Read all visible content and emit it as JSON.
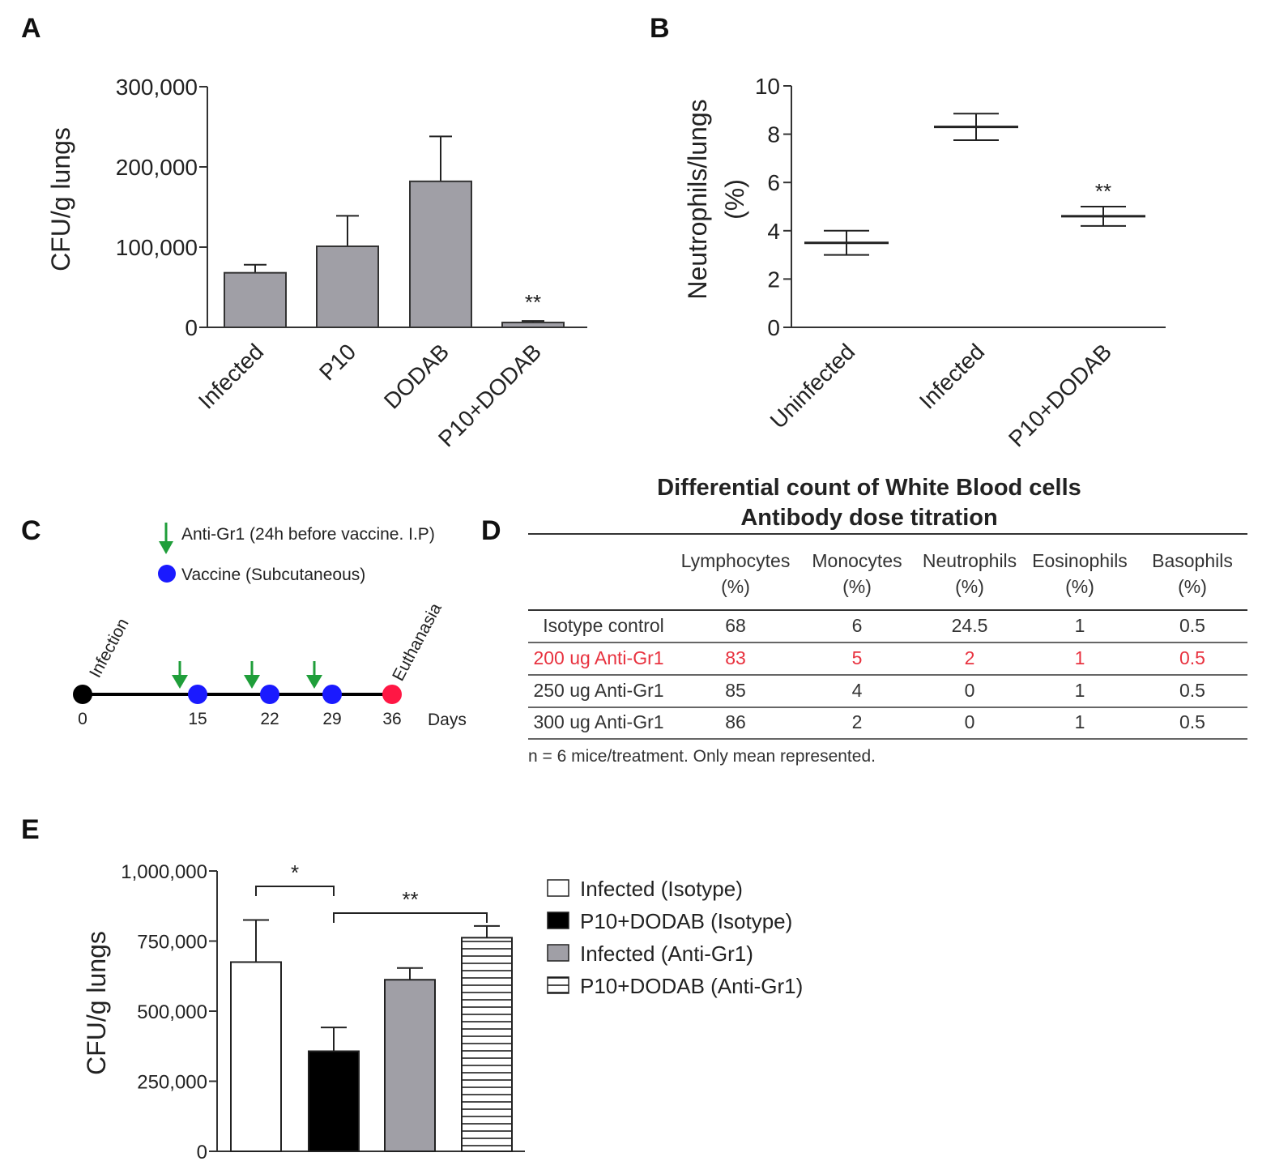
{
  "panels": {
    "A": "A",
    "B": "B",
    "C": "C",
    "D": "D",
    "E": "E"
  },
  "colors": {
    "gray_bar": "#a09fa6",
    "black": "#000000",
    "green_arrow": "#1f9e3a",
    "vaccine_blue": "#1a1aff",
    "euthanasia_red": "#ff1744",
    "table_red": "#e8323f"
  },
  "chart_data": [
    {
      "id": "A",
      "type": "bar",
      "ylabel": "CFU/g lungs",
      "ylim": [
        0,
        300000
      ],
      "yticks": [
        0,
        100000,
        200000,
        300000
      ],
      "ytick_labels": [
        "0",
        "100,000",
        "200,000",
        "300,000"
      ],
      "categories": [
        "Infected",
        "P10",
        "DODAB",
        "P10+DODAB"
      ],
      "values": [
        68000,
        101000,
        182000,
        6000
      ],
      "errors": [
        10000,
        38000,
        56000,
        2000
      ],
      "annotations": [
        {
          "category": "P10+DODAB",
          "text": "**"
        }
      ]
    },
    {
      "id": "B",
      "type": "scatter",
      "ylabel": "Neutrophils/lungs (%)",
      "ylim": [
        0,
        10
      ],
      "yticks": [
        0,
        2,
        4,
        6,
        8,
        10
      ],
      "ytick_labels": [
        "0",
        "2",
        "4",
        "6",
        "8",
        "10"
      ],
      "categories": [
        "Uninfected",
        "Infected",
        "P10+DODAB"
      ],
      "values": [
        3.5,
        8.3,
        4.6
      ],
      "errors": [
        0.5,
        0.55,
        0.4
      ],
      "annotations": [
        {
          "category": "P10+DODAB",
          "text": "**"
        }
      ]
    },
    {
      "id": "E",
      "type": "bar",
      "ylabel": "CFU/g lungs",
      "ylim": [
        0,
        1000000
      ],
      "yticks": [
        0,
        250000,
        500000,
        750000,
        1000000
      ],
      "ytick_labels": [
        "0",
        "250,000",
        "500,000",
        "750,000",
        "1,000,000"
      ],
      "series": [
        {
          "name": "Infected (Isotype)",
          "value": 675000,
          "error": 150000,
          "fill": "white"
        },
        {
          "name": "P10+DODAB (Isotype)",
          "value": 357000,
          "error": 85000,
          "fill": "black"
        },
        {
          "name": "Infected (Anti-Gr1)",
          "value": 612000,
          "error": 42000,
          "fill": "gray"
        },
        {
          "name": "P10+DODAB (Anti-Gr1)",
          "value": 762000,
          "error": 42000,
          "fill": "stripes"
        }
      ],
      "significance": [
        {
          "from": 0,
          "to": 1,
          "text": "*"
        },
        {
          "from": 1,
          "to": 3,
          "text": "**"
        }
      ]
    }
  ],
  "timeline": {
    "legend_arrow": "Anti-Gr1 (24h before vaccine. I.P)",
    "legend_vaccine": "Vaccine (Subcutaneous)",
    "infection_label": "Infection",
    "euthanasia_label": "Euthanasia",
    "days_label": "Days",
    "days": [
      0,
      15,
      22,
      29,
      36
    ]
  },
  "table": {
    "title1": "Differential count of White Blood cells",
    "title2": "Antibody dose titration",
    "headers": [
      {
        "name": "Lymphocytes",
        "unit": "(%)"
      },
      {
        "name": "Monocytes",
        "unit": "(%)"
      },
      {
        "name": "Neutrophils",
        "unit": "(%)"
      },
      {
        "name": "Eosinophils",
        "unit": "(%)"
      },
      {
        "name": "Basophils",
        "unit": "(%)"
      }
    ],
    "rows": [
      {
        "label": "Isotype control",
        "values": [
          "68",
          "6",
          "24.5",
          "1",
          "0.5"
        ],
        "highlight": false
      },
      {
        "label": "200 ug Anti-Gr1",
        "values": [
          "83",
          "5",
          "2",
          "1",
          "0.5"
        ],
        "highlight": true
      },
      {
        "label": "250 ug Anti-Gr1",
        "values": [
          "85",
          "4",
          "0",
          "1",
          "0.5"
        ],
        "highlight": false
      },
      {
        "label": "300 ug Anti-Gr1",
        "values": [
          "86",
          "2",
          "0",
          "1",
          "0.5"
        ],
        "highlight": false
      }
    ],
    "footnote": "n = 6 mice/treatment. Only mean represented."
  }
}
